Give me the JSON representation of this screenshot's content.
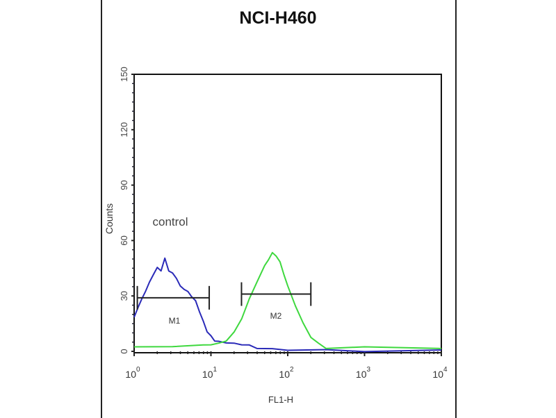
{
  "chart_data": {
    "type": "line",
    "title": "NCI-H460",
    "xlabel": "FL1-H",
    "ylabel": "Counts",
    "xscale": "log",
    "xlim": [
      1,
      10000
    ],
    "ylim": [
      0,
      150
    ],
    "x_ticks": [
      {
        "base": "10",
        "exp": "0"
      },
      {
        "base": "10",
        "exp": "1"
      },
      {
        "base": "10",
        "exp": "2"
      },
      {
        "base": "10",
        "exp": "3"
      },
      {
        "base": "10",
        "exp": "4"
      }
    ],
    "y_ticks": [
      "0",
      "30",
      "60",
      "90",
      "120",
      "150"
    ],
    "grid": false,
    "annotations": {
      "control_label": "control",
      "m1_label": "M1",
      "m2_label": "M2"
    },
    "markers": [
      {
        "name": "M1",
        "range": [
          1.1,
          9.5
        ],
        "y": 29
      },
      {
        "name": "M2",
        "range": [
          25,
          200
        ],
        "y": 31
      }
    ],
    "series": [
      {
        "color": "#2a2ab8",
        "points": [
          [
            1,
            18
          ],
          [
            1.12,
            24
          ],
          [
            1.26,
            28
          ],
          [
            1.41,
            33
          ],
          [
            1.58,
            37
          ],
          [
            1.78,
            42
          ],
          [
            2,
            45
          ],
          [
            2.24,
            44
          ],
          [
            2.51,
            50
          ],
          [
            2.82,
            44
          ],
          [
            3.16,
            42
          ],
          [
            3.55,
            40
          ],
          [
            3.98,
            35
          ],
          [
            4.47,
            34
          ],
          [
            5.01,
            32
          ],
          [
            5.62,
            30
          ],
          [
            6.31,
            27
          ],
          [
            7.08,
            22
          ],
          [
            7.94,
            16
          ],
          [
            8.91,
            11
          ],
          [
            10,
            8
          ],
          [
            11.2,
            6
          ],
          [
            12.6,
            5
          ],
          [
            15.8,
            5
          ],
          [
            20,
            4
          ],
          [
            25.1,
            4
          ],
          [
            31.6,
            3
          ],
          [
            39.8,
            2
          ],
          [
            63.1,
            1
          ],
          [
            100,
            1
          ],
          [
            316,
            0.5
          ],
          [
            1000,
            0.3
          ],
          [
            10000,
            0.3
          ]
        ]
      },
      {
        "color": "#3ed83e",
        "points": [
          [
            1,
            2
          ],
          [
            3.16,
            3
          ],
          [
            7.94,
            3
          ],
          [
            10,
            4
          ],
          [
            12.6,
            4
          ],
          [
            15.8,
            6
          ],
          [
            20,
            10
          ],
          [
            25.1,
            18
          ],
          [
            31.6,
            28
          ],
          [
            39.8,
            38
          ],
          [
            50.1,
            46
          ],
          [
            56.2,
            50
          ],
          [
            63.1,
            53
          ],
          [
            70.8,
            52
          ],
          [
            79.4,
            48
          ],
          [
            89.1,
            42
          ],
          [
            100,
            35
          ],
          [
            126,
            25
          ],
          [
            158,
            15
          ],
          [
            200,
            8
          ],
          [
            251,
            4
          ],
          [
            316,
            2
          ],
          [
            1000,
            2
          ],
          [
            10000,
            2
          ]
        ]
      }
    ]
  }
}
